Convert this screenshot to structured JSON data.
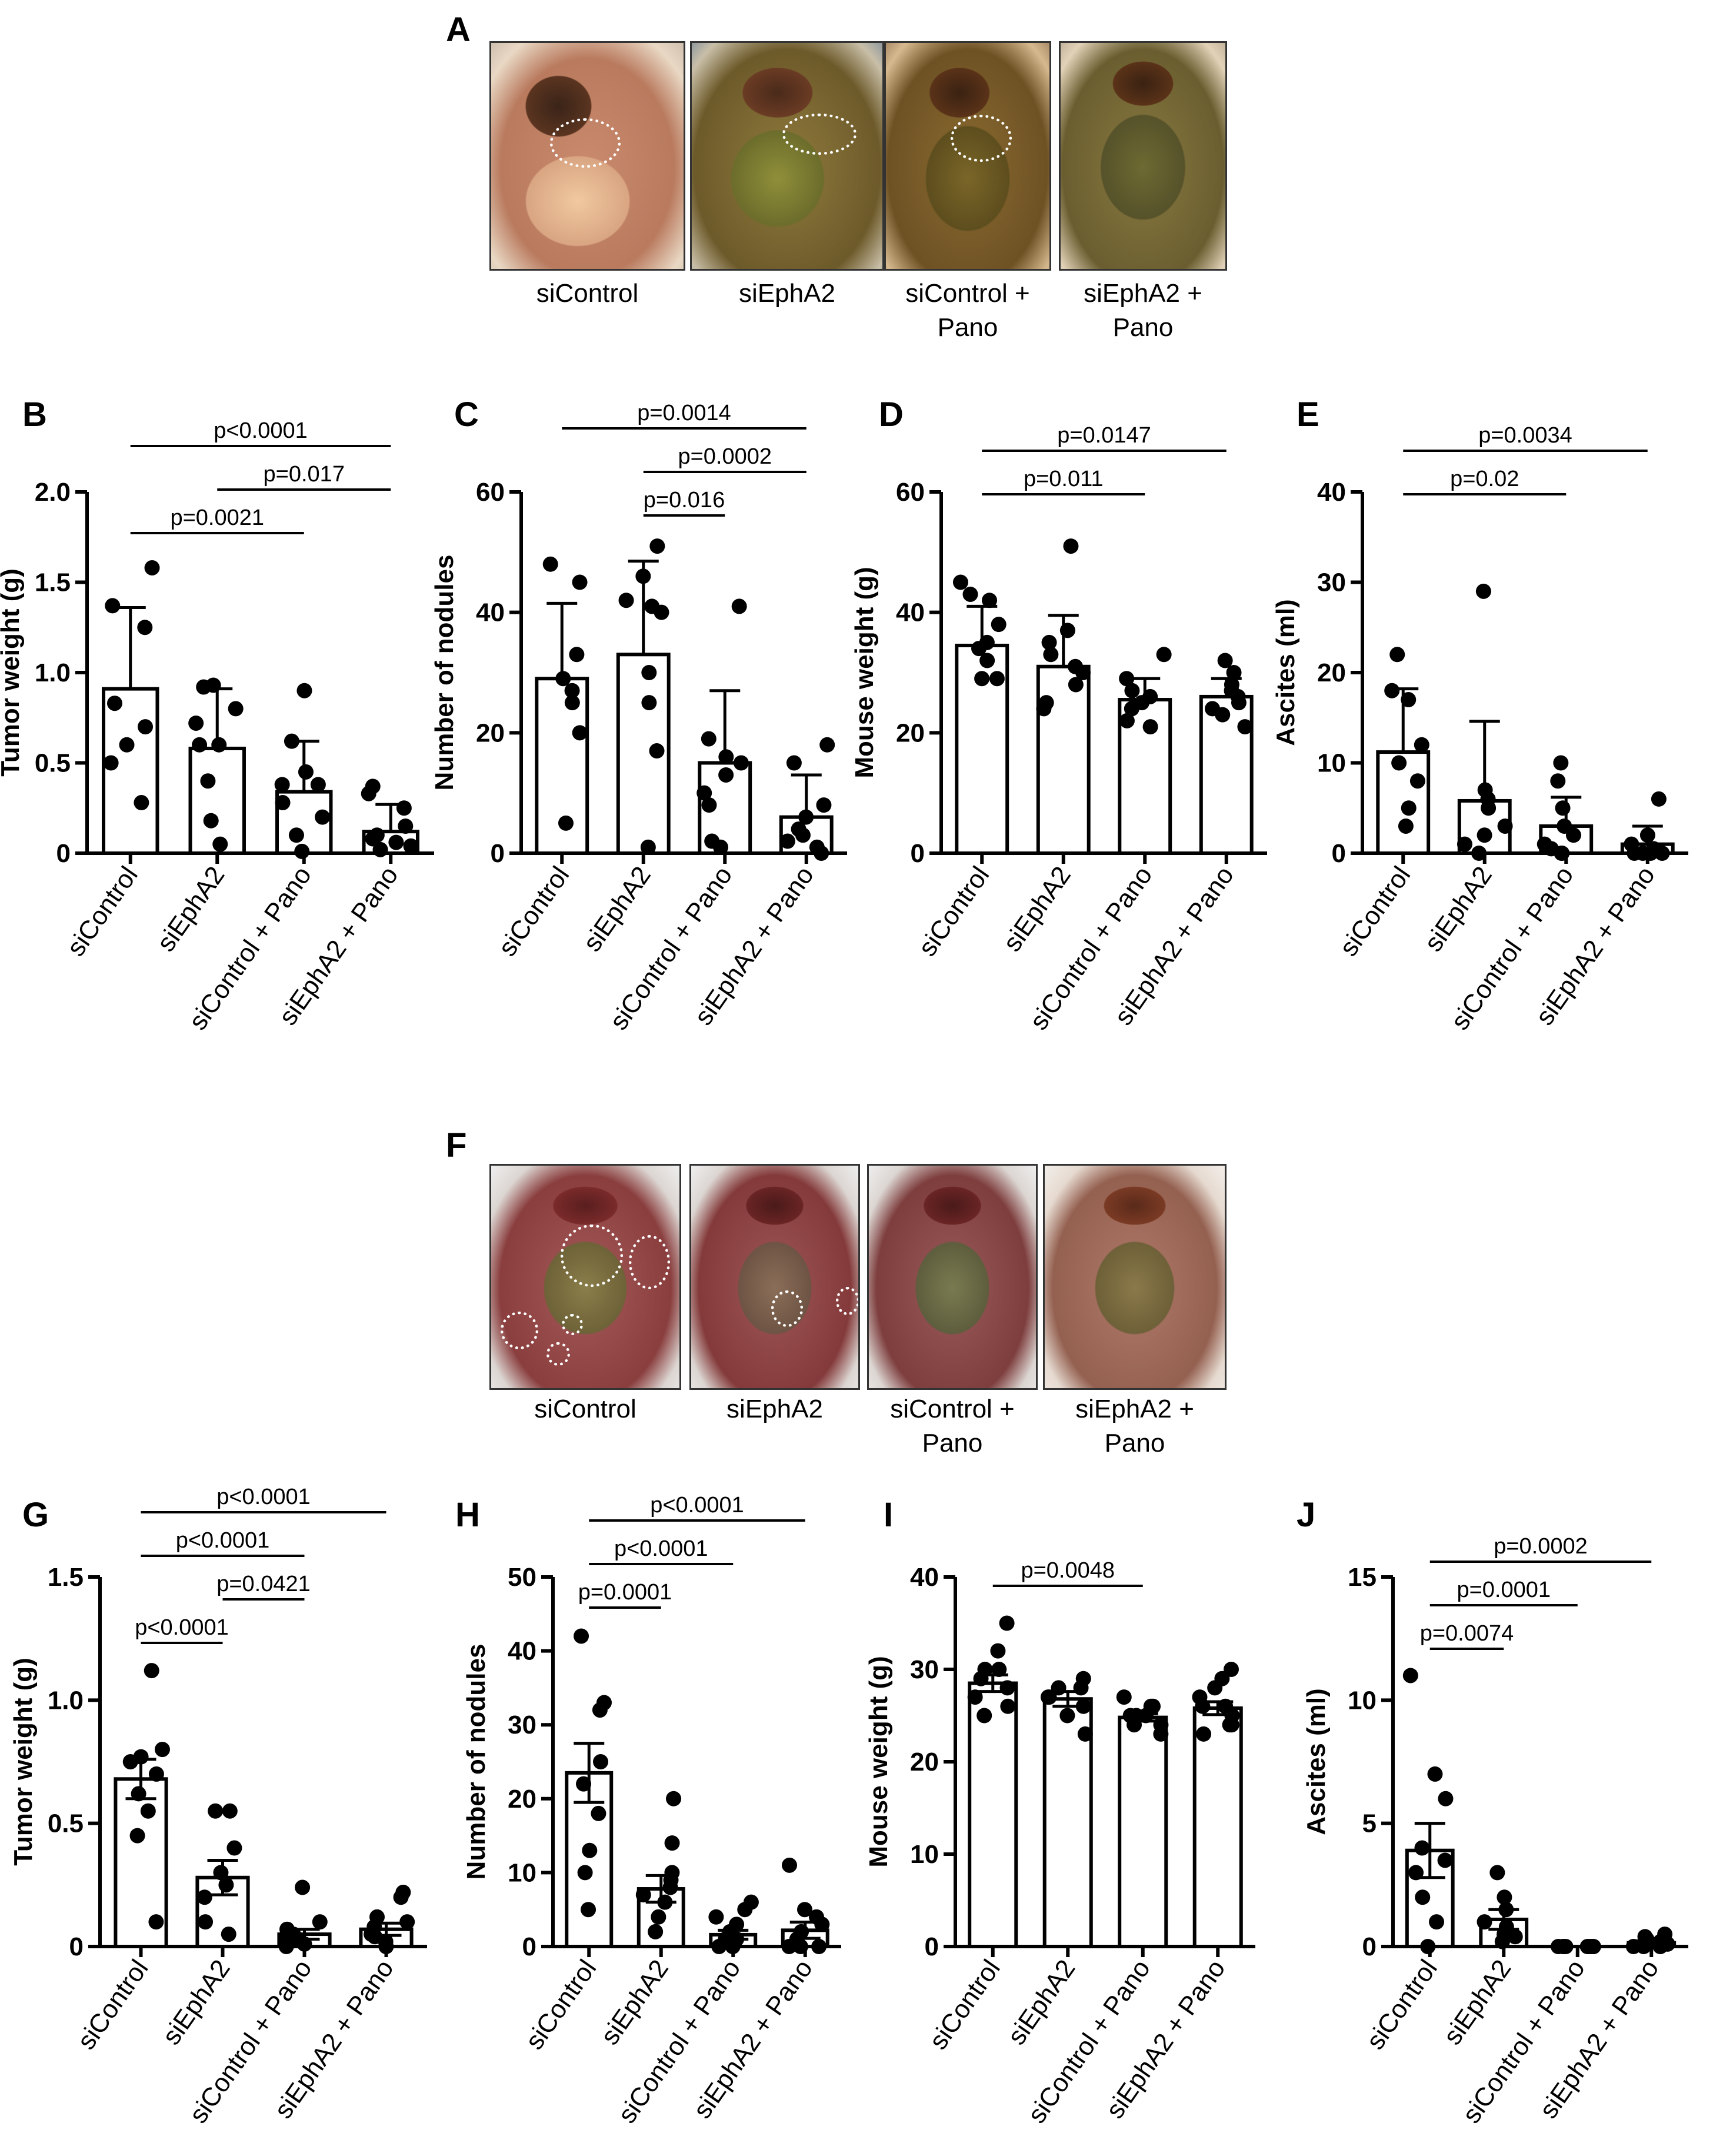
{
  "figure": {
    "panel_a": {
      "label": "A",
      "captions": [
        "siControl",
        "siEphA2",
        "siControl +\nPano",
        "siEphA2 +\nPano"
      ]
    },
    "panel_f": {
      "label": "F",
      "captions": [
        "siControl",
        "siEphA2",
        "siControl +\nPano",
        "siEphA2 +\nPano"
      ]
    }
  },
  "chart_data": [
    {
      "id": "B",
      "type": "bar",
      "error": "SD",
      "categories": [
        "siControl",
        "siEphA2",
        "siControl + Pano",
        "siEphA2 + Pano"
      ],
      "ylabel": "Tumor weight (g)",
      "ylim": [
        0,
        2.0
      ],
      "yticks": [
        0,
        0.5,
        1.0,
        1.5,
        2.0
      ],
      "ytick_labels": [
        "0",
        "0.5",
        "1.0",
        "1.5",
        "2.0"
      ],
      "means": [
        0.91,
        0.58,
        0.34,
        0.12
      ],
      "errors": [
        0.45,
        0.33,
        0.28,
        0.15
      ],
      "points": [
        [
          0.28,
          0.5,
          0.6,
          0.7,
          0.83,
          1.25,
          1.37,
          1.58
        ],
        [
          0.05,
          0.18,
          0.4,
          0.6,
          0.6,
          0.72,
          0.8,
          0.92,
          0.93
        ],
        [
          0.01,
          0.1,
          0.2,
          0.28,
          0.38,
          0.38,
          0.45,
          0.62,
          0.9
        ],
        [
          0.02,
          0.04,
          0.06,
          0.08,
          0.1,
          0.15,
          0.25,
          0.33,
          0.37
        ]
      ],
      "comparisons": [
        {
          "from": 0,
          "to": 2,
          "label": "p=0.0021"
        },
        {
          "from": 1,
          "to": 3,
          "label": "p=0.017"
        },
        {
          "from": 0,
          "to": 3,
          "label": "p<0.0001"
        }
      ]
    },
    {
      "id": "C",
      "type": "bar",
      "error": "SD",
      "categories": [
        "siControl",
        "siEphA2",
        "siControl + Pano",
        "siEphA2 + Pano"
      ],
      "ylabel": "Number of nodules",
      "ylim": [
        0,
        60
      ],
      "yticks": [
        0,
        20,
        40,
        60
      ],
      "ytick_labels": [
        "0",
        "20",
        "40",
        "60"
      ],
      "means": [
        29,
        33,
        15,
        6
      ],
      "errors": [
        12.5,
        15.5,
        12,
        7
      ],
      "points": [
        [
          5,
          20,
          25,
          27,
          29,
          33,
          45,
          48
        ],
        [
          1,
          17,
          25,
          30,
          40,
          41,
          42,
          46,
          51
        ],
        [
          1,
          2,
          8,
          10,
          13,
          15,
          16,
          19,
          41
        ],
        [
          0,
          1,
          2,
          3,
          4,
          6,
          8,
          15,
          18
        ]
      ],
      "comparisons": [
        {
          "from": 1,
          "to": 2,
          "label": "p=0.016"
        },
        {
          "from": 1,
          "to": 3,
          "label": "p=0.0002"
        },
        {
          "from": 0,
          "to": 3,
          "label": "p=0.0014"
        }
      ]
    },
    {
      "id": "D",
      "type": "bar",
      "error": "SD",
      "categories": [
        "siControl",
        "siEphA2",
        "siControl + Pano",
        "siEphA2 + Pano"
      ],
      "ylabel": "Mouse weight (g)",
      "ylim": [
        0,
        60
      ],
      "yticks": [
        0,
        20,
        40,
        60
      ],
      "ytick_labels": [
        "0",
        "20",
        "40",
        "60"
      ],
      "means": [
        34.5,
        31,
        25.5,
        26
      ],
      "errors": [
        6.5,
        8.5,
        3.5,
        3
      ],
      "points": [
        [
          29,
          29,
          32,
          34,
          35,
          38,
          42,
          43,
          45
        ],
        [
          24,
          25,
          28,
          30,
          31,
          33,
          35,
          37,
          51
        ],
        [
          21,
          22,
          24,
          25,
          26,
          27,
          29,
          33
        ],
        [
          21,
          23,
          24,
          25,
          26,
          27,
          28,
          30,
          32
        ]
      ],
      "comparisons": [
        {
          "from": 0,
          "to": 2,
          "label": "p=0.011"
        },
        {
          "from": 0,
          "to": 3,
          "label": "p=0.0147"
        }
      ]
    },
    {
      "id": "E",
      "type": "bar",
      "error": "SD",
      "categories": [
        "siControl",
        "siEphA2",
        "siControl + Pano",
        "siEphA2 + Pano"
      ],
      "ylabel": "Ascites (ml)",
      "ylim": [
        0,
        40
      ],
      "yticks": [
        0,
        10,
        20,
        30,
        40
      ],
      "ytick_labels": [
        "0",
        "10",
        "20",
        "30",
        "40"
      ],
      "means": [
        11.2,
        5.8,
        3,
        1
      ],
      "errors": [
        7,
        8.8,
        3.2,
        2
      ],
      "points": [
        [
          3,
          5,
          8,
          10,
          12,
          17,
          18,
          22
        ],
        [
          0,
          1,
          2,
          3,
          5,
          6,
          7,
          29
        ],
        [
          0,
          0,
          0.5,
          1,
          2,
          3,
          5,
          8,
          10
        ],
        [
          0,
          0,
          0,
          0,
          0.5,
          1,
          2,
          6
        ]
      ],
      "comparisons": [
        {
          "from": 0,
          "to": 2,
          "label": "p=0.02"
        },
        {
          "from": 0,
          "to": 3,
          "label": "p=0.0034"
        }
      ]
    },
    {
      "id": "G",
      "type": "bar",
      "error": "SEM",
      "categories": [
        "siControl",
        "siEphA2",
        "siControl + Pano",
        "siEphA2 + Pano"
      ],
      "ylabel": "Tumor weight (g)",
      "ylim": [
        0,
        1.5
      ],
      "yticks": [
        0,
        0.5,
        1.0,
        1.5
      ],
      "ytick_labels": [
        "0",
        "0.5",
        "1.0",
        "1.5"
      ],
      "means": [
        0.68,
        0.28,
        0.05,
        0.07
      ],
      "errors": [
        0.08,
        0.07,
        0.02,
        0.025
      ],
      "points": [
        [
          0.1,
          0.45,
          0.55,
          0.62,
          0.7,
          0.75,
          0.77,
          0.8,
          1.12
        ],
        [
          0.05,
          0.1,
          0.2,
          0.25,
          0.3,
          0.4,
          0.55,
          0.55
        ],
        [
          0.0,
          0.01,
          0.02,
          0.03,
          0.04,
          0.05,
          0.07,
          0.1,
          0.24
        ],
        [
          0.0,
          0.02,
          0.04,
          0.05,
          0.08,
          0.1,
          0.12,
          0.2,
          0.22
        ]
      ],
      "comparisons": [
        {
          "from": 0,
          "to": 1,
          "label": "p<0.0001"
        },
        {
          "from": 1,
          "to": 2,
          "label": "p=0.0421"
        },
        {
          "from": 0,
          "to": 2,
          "label": "p<0.0001"
        },
        {
          "from": 0,
          "to": 3,
          "label": "p<0.0001"
        }
      ]
    },
    {
      "id": "H",
      "type": "bar",
      "error": "SEM",
      "categories": [
        "siControl",
        "siEphA2",
        "siControl + Pano",
        "siEphA2 + Pano"
      ],
      "ylabel": "Number of nodules",
      "ylim": [
        0,
        50
      ],
      "yticks": [
        0,
        10,
        20,
        30,
        40,
        50
      ],
      "ytick_labels": [
        "0",
        "10",
        "20",
        "30",
        "40",
        "50"
      ],
      "means": [
        23.5,
        7.8,
        1.6,
        2.2
      ],
      "errors": [
        4,
        1.8,
        0.6,
        1.1
      ],
      "points": [
        [
          5,
          10,
          13,
          18,
          22,
          25,
          32,
          33,
          42
        ],
        [
          2,
          4,
          6,
          7,
          8,
          9,
          10,
          14,
          20
        ],
        [
          0,
          0,
          1,
          1,
          2,
          3,
          4,
          5,
          6
        ],
        [
          0,
          0,
          0,
          1,
          2,
          3,
          4,
          5,
          11
        ]
      ],
      "comparisons": [
        {
          "from": 0,
          "to": 1,
          "label": "p=0.0001"
        },
        {
          "from": 0,
          "to": 2,
          "label": "p<0.0001"
        },
        {
          "from": 0,
          "to": 3,
          "label": "p<0.0001"
        }
      ]
    },
    {
      "id": "I",
      "type": "bar",
      "error": "SEM",
      "categories": [
        "siControl",
        "siEphA2",
        "siControl + Pano",
        "siEphA2 + Pano"
      ],
      "ylabel": "Mouse weight (g)",
      "ylim": [
        0,
        40
      ],
      "yticks": [
        0,
        10,
        20,
        30,
        40
      ],
      "ytick_labels": [
        "0",
        "10",
        "20",
        "30",
        "40"
      ],
      "means": [
        28.5,
        26.8,
        24.8,
        25.8
      ],
      "errors": [
        0.9,
        0.8,
        0.4,
        0.7
      ],
      "points": [
        [
          25,
          26,
          27,
          28,
          29,
          30,
          30,
          32,
          35
        ],
        [
          23,
          25,
          26,
          27,
          27,
          28,
          28,
          29
        ],
        [
          23,
          24,
          24,
          25,
          25,
          25,
          26,
          26,
          27
        ],
        [
          23,
          24,
          24,
          25,
          26,
          26,
          27,
          28,
          29,
          30
        ]
      ],
      "comparisons": [
        {
          "from": 0,
          "to": 2,
          "label": "p=0.0048"
        }
      ]
    },
    {
      "id": "J",
      "type": "bar",
      "error": "SEM",
      "categories": [
        "siControl",
        "siEphA2",
        "siControl + Pano",
        "siEphA2 + Pano"
      ],
      "ylabel": "Ascites (ml)",
      "ylim": [
        0,
        15
      ],
      "yticks": [
        0,
        5,
        10,
        15
      ],
      "ytick_labels": [
        "0",
        "5",
        "10",
        "15"
      ],
      "means": [
        3.9,
        1.1,
        0.0,
        0.15
      ],
      "errors": [
        1.1,
        0.4,
        0.0,
        0.08
      ],
      "points": [
        [
          0,
          1,
          2,
          3,
          3.5,
          4,
          6,
          7,
          11
        ],
        [
          0.2,
          0.4,
          0.5,
          0.8,
          1,
          1.5,
          2,
          3
        ],
        [
          0,
          0,
          0,
          0,
          0,
          0,
          0,
          0,
          0
        ],
        [
          0,
          0,
          0.1,
          0.2,
          0.3,
          0.4,
          0.5,
          0
        ]
      ],
      "comparisons": [
        {
          "from": 0,
          "to": 1,
          "label": "p=0.0074"
        },
        {
          "from": 0,
          "to": 2,
          "label": "p=0.0001"
        },
        {
          "from": 0,
          "to": 3,
          "label": "p=0.0002"
        }
      ]
    }
  ]
}
